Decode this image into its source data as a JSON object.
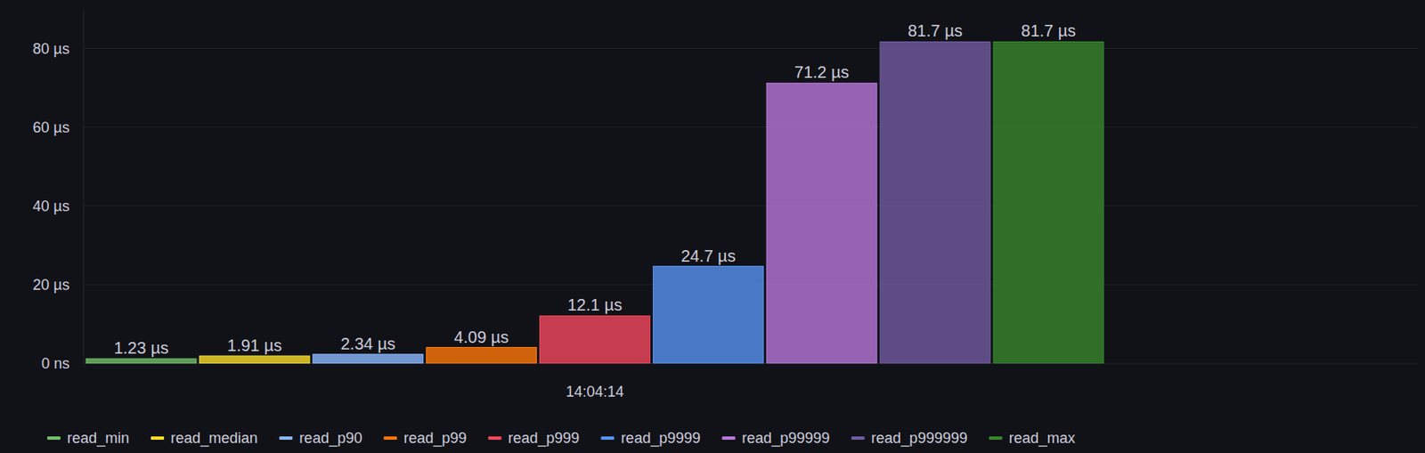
{
  "chart_data": {
    "type": "bar",
    "categories": [
      "14:04:14"
    ],
    "series": [
      {
        "name": "read_min",
        "color": "#73bf69",
        "values": [
          1.23
        ],
        "value_labels": [
          "1.23 µs"
        ]
      },
      {
        "name": "read_median",
        "color": "#fade2a",
        "values": [
          1.91
        ],
        "value_labels": [
          "1.91 µs"
        ]
      },
      {
        "name": "read_p90",
        "color": "#8ab8ff",
        "values": [
          2.34
        ],
        "value_labels": [
          "2.34 µs"
        ]
      },
      {
        "name": "read_p99",
        "color": "#ff780a",
        "values": [
          4.09
        ],
        "value_labels": [
          "4.09 µs"
        ]
      },
      {
        "name": "read_p999",
        "color": "#f2495c",
        "values": [
          12.1
        ],
        "value_labels": [
          "12.1 µs"
        ]
      },
      {
        "name": "read_p9999",
        "color": "#5794f2",
        "values": [
          24.7
        ],
        "value_labels": [
          "24.7 µs"
        ]
      },
      {
        "name": "read_p99999",
        "color": "#b877d9",
        "values": [
          71.2
        ],
        "value_labels": [
          "71.2 µs"
        ]
      },
      {
        "name": "read_p999999",
        "color": "#705da0",
        "values": [
          81.7
        ],
        "value_labels": [
          "81.7 µs"
        ]
      },
      {
        "name": "read_max",
        "color": "#37872d",
        "values": [
          81.7
        ],
        "value_labels": [
          "81.7 µs"
        ]
      }
    ],
    "ylim": [
      0,
      90
    ],
    "yticks": [
      {
        "value": 0,
        "label": "0 ns"
      },
      {
        "value": 20,
        "label": "20 µs"
      },
      {
        "value": 40,
        "label": "40 µs"
      },
      {
        "value": 60,
        "label": "60 µs"
      },
      {
        "value": 80,
        "label": "80 µs"
      }
    ],
    "grid": true,
    "data_labels": true,
    "legend": "bottom"
  }
}
